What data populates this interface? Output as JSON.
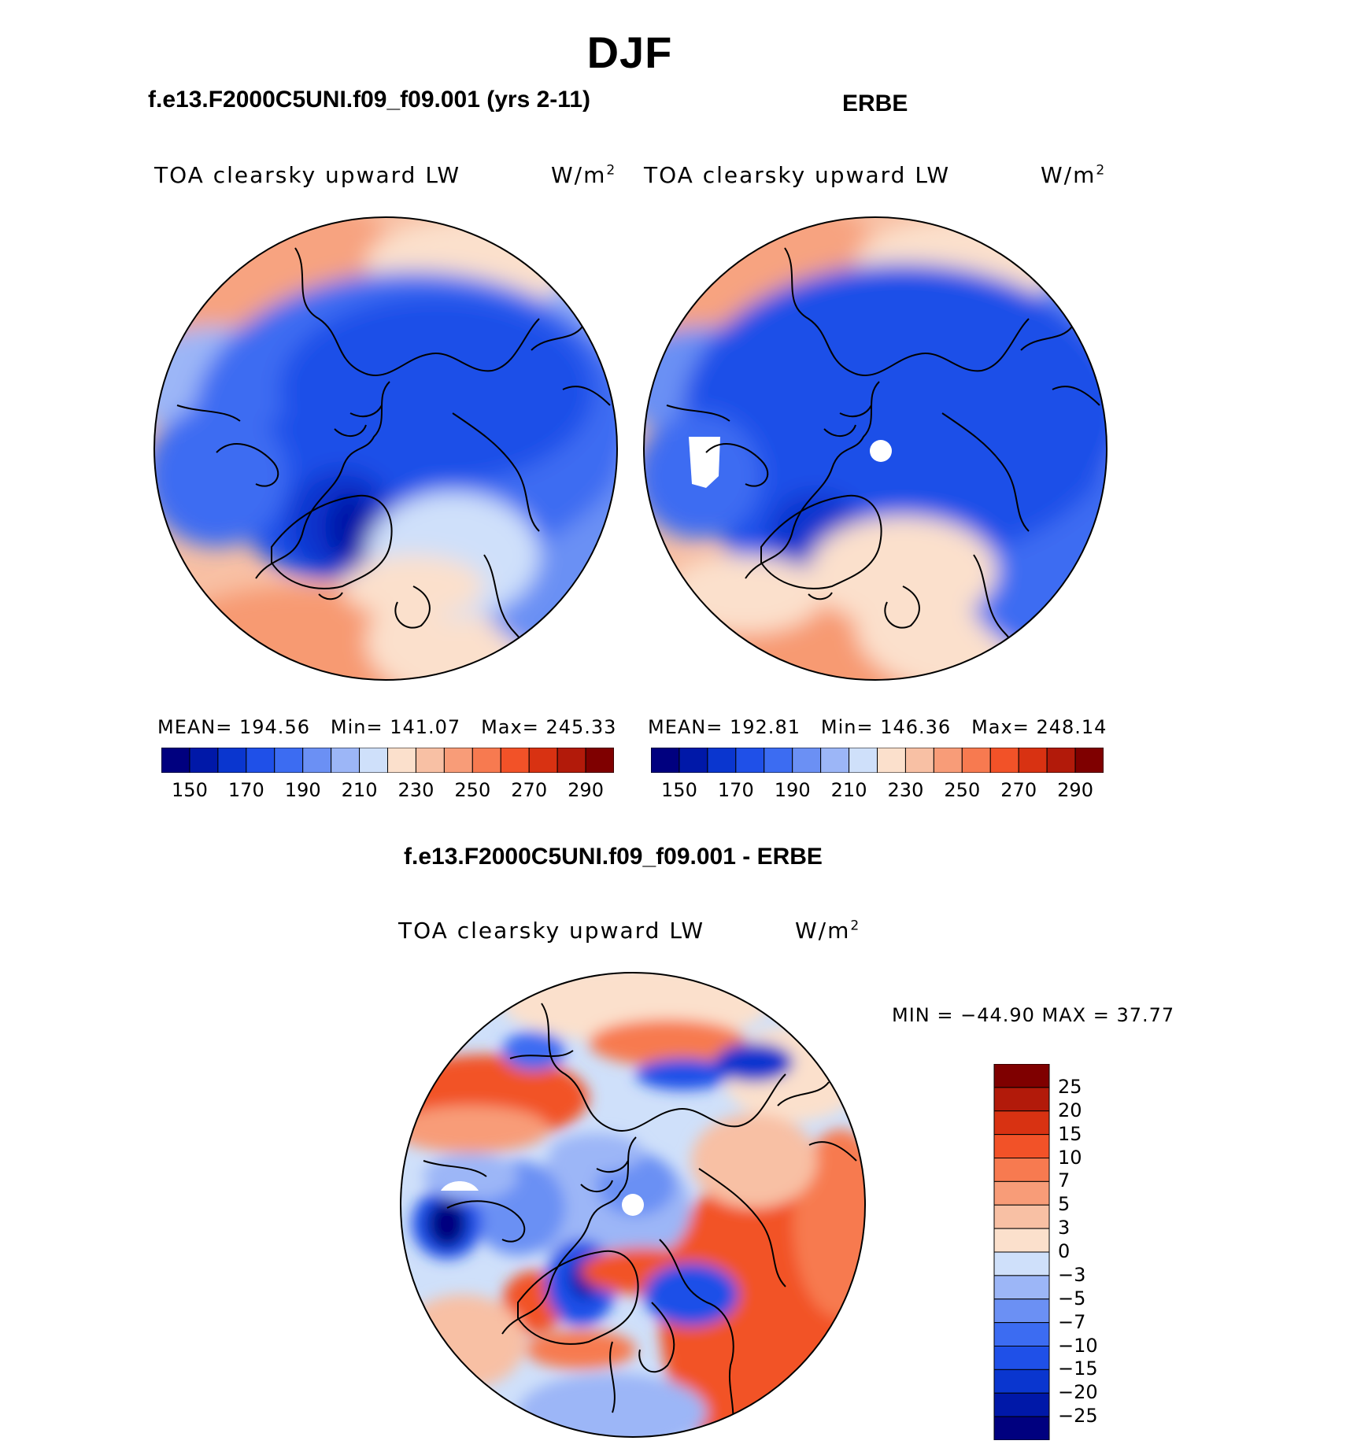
{
  "figure": {
    "season": "DJF"
  },
  "panels": [
    {
      "title": "f.e13.F2000C5UNI.f09_f09.001 (yrs 2-11)",
      "variable": "TOA clearsky upward LW",
      "units": "W/m2",
      "mean_label": "MEAN=",
      "mean": "194.56",
      "min_label": "Min=",
      "min": "141.07",
      "max_label": "Max=",
      "max": "245.33"
    },
    {
      "title": "ERBE",
      "variable": "TOA clearsky upward LW",
      "units": "W/m2",
      "mean_label": "MEAN=",
      "mean": "192.81",
      "min_label": "Min=",
      "min": "146.36",
      "max_label": "Max=",
      "max": "248.14"
    },
    {
      "title": "f.e13.F2000C5UNI.f09_f09.001 - ERBE",
      "variable": "TOA clearsky upward LW",
      "units": "W/m2",
      "min_max_text": "MIN = −44.90 MAX =  37.77"
    }
  ],
  "abs_colorbar": {
    "ticks": [
      "150",
      "170",
      "190",
      "210",
      "230",
      "250",
      "270",
      "290"
    ],
    "colors": [
      "#00007f",
      "#0018a8",
      "#0a36cf",
      "#1f50e8",
      "#3c6cf2",
      "#6b90f4",
      "#9cb6f7",
      "#cfe0fa",
      "#fbe0cc",
      "#f8c0a4",
      "#f89c78",
      "#f77a50",
      "#f25228",
      "#d83212",
      "#b21a0a",
      "#7f0000"
    ]
  },
  "diff_colorbar": {
    "ticks": [
      "25",
      "20",
      "15",
      "10",
      "7",
      "5",
      "3",
      "0",
      "−3",
      "−5",
      "−7",
      "−10",
      "−15",
      "−20",
      "−25"
    ],
    "colors": [
      "#7f0000",
      "#b21a0a",
      "#d83212",
      "#f25228",
      "#f77a50",
      "#f89c78",
      "#f8c0a4",
      "#fbe0cc",
      "#cfe0fa",
      "#9cb6f7",
      "#6b90f4",
      "#3c6cf2",
      "#1f50e8",
      "#0a36cf",
      "#0018a8",
      "#00007f"
    ]
  },
  "map_colors": {
    "ocean_warm": "#f7b592",
    "deep_blue": "#1f50e8",
    "coast": "#000000"
  }
}
